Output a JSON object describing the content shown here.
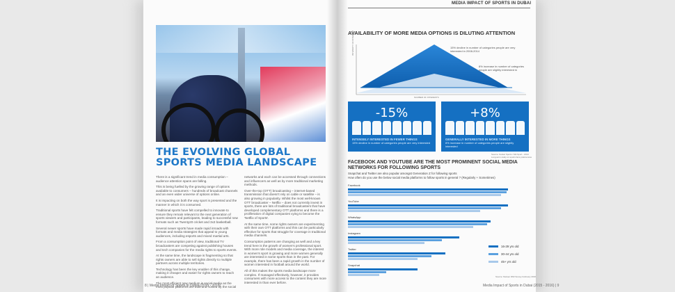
{
  "left_page": {
    "title_line1": "THE EVOLVING GLOBAL",
    "title_line2": "SPORTS MEDIA LANDSCAPE",
    "body_col1": [
      "There is a significant trend in media consumption – audience attention spans are falling.",
      "This is being fuelled by the growing range of options available to consumers – hundreds of broadcast channels and an even wider universe of options online.",
      "It is impacting on both the way sport is presented and the manner in which it is consumed.",
      "Traditional sports have felt compelled to innovate to ensure they remain relevant to the next generation of sports viewers and participants, leading to successful new formats such as Twenty20 cricket and 3x3 basketball.",
      "Several newer sports have made rapid inroads with formats and media strategies that appeal to young audiences, including esports and mixed martial arts.",
      "From a consumption point of view, traditional TV broadcasters are competing against publishing houses and tech companies for the media rights to sports events.",
      "At the same time, the landscape is fragmenting so that rights owners are able to sell rights directly to multiple partners across multiple territories.",
      "Technology has been the key enabler of this change, making it cheaper and easier for rights owners to reach an audience.",
      "The most efficient new medium is social media as the most popular platforms are built and hosted by the social"
    ],
    "body_col2": [
      "networks and each can be accessed through connections and influencers as well as by more traditional marketing methods.",
      "Over-the-top (OTT) broadcasting – internet-based transmission that doesn't rely on cable or satellite – is also growing in popularity. Whilst the most well-known OTT broadcaster – Netflix – does not currently invest in sports, there are lots of traditional broadcasters that have developed complementary OTT platforms and there is a proliferation of digital companies vying to become the 'Netflix of Sports'.",
      "At the same time, some rights owners are experimenting with their own OTT platforms and this can be particularly effective for sports that struggle for coverage in traditional media channels.",
      "Consumption patterns are changing as well and a key trend here is the growth of women's professional sport. With more role models and media coverage, the interest in women's sport is growing and more women generally are interested in some sports than in the past. For example, there has been a rapid growth in the number of women interested in football around the world.",
      "All of this makes the sports media landscape more complex. If managed effectively, however, it provides consumers with more access to the content they are more interested in than ever before."
    ],
    "footer": "8 | Media Impact of Sports in Dubai (2015 - 2016)"
  },
  "right_page": {
    "header": "MEDIA IMPACT OF SPORTS IN DUBAI",
    "section1_title": "AVAILABILITY OF MORE MEDIA OPTIONS IS DILUTING ATTENTION",
    "axis_y": "INTENSITY OF INTEREST",
    "axis_x": "NUMBER OF INTERESTS",
    "note_top": "15% decline in number of categories people are very interested in 2008-2014",
    "note_mid": "8% increase in number of categories people are slightly interested in",
    "box_left": {
      "pct": "-15%",
      "label": "INTENSELY INTERESTED IN FEWER THINGS",
      "sub": "15% decline in number of categories people are very interested"
    },
    "box_right": {
      "pct": "+8%",
      "label": "GENERALLY INTERESTED IN MORE THINGS",
      "sub": "8% increase in number of categories people are slightly interested"
    },
    "source1": "Source: Kantar Sports / MA Sport - 2014 Long-term study on sports fans preferences",
    "section2_title": "FACEBOOK AND YOUTUBE ARE THE MOST PROMINENT SOCIAL MEDIA NETWORKS FOR FOLLOWING SPORTS",
    "section2_sub1": "Snapchat and Twitter are also popular amongst Generation Z for following sports",
    "section2_sub2": "How often do you use the below social media platforms to follow sports in general ? (Regularly + Sometimes)",
    "legend": [
      "16-29 yrs old",
      "30-44 yrs old",
      "45+ yrs old"
    ],
    "colors": {
      "series1": "#1570c2",
      "series2": "#5aa0df",
      "series3": "#a8c9ea"
    },
    "source2": "Source: Nielsen DMI Survey February 2016",
    "footer": "Media Impact of Sports in Dubai (2015 - 2016) | 9"
  },
  "chart_data": {
    "type": "bar",
    "categories": [
      "Facebook",
      "YouTube",
      "WhatsApp",
      "Instagram",
      "Twitter",
      "Snapchat"
    ],
    "series": [
      {
        "name": "16-29 yrs old",
        "values": [
          92,
          92,
          82,
          64,
          56,
          40
        ]
      },
      {
        "name": "30-44 yrs old",
        "values": [
          91,
          88,
          80,
          54,
          48,
          22
        ]
      },
      {
        "name": "45+ yrs old",
        "values": [
          88,
          76,
          72,
          44,
          40,
          18
        ]
      }
    ],
    "orientation": "horizontal",
    "xlim": [
      0,
      100
    ]
  }
}
